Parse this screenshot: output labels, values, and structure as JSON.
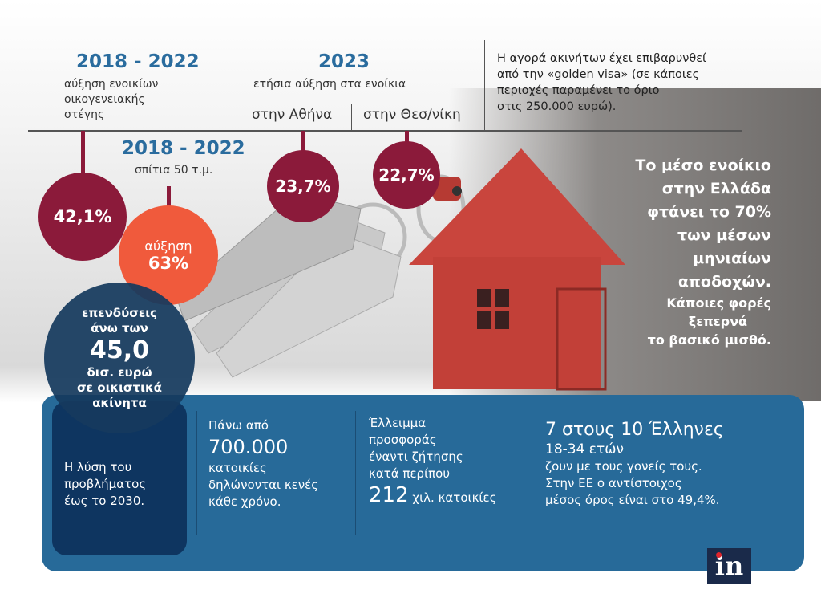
{
  "top": {
    "block1": {
      "years": "2018 - 2022",
      "lines": [
        "αύξηση ενοικίων",
        "οικογενειακής",
        "στέγης"
      ]
    },
    "block2": {
      "year": "2023",
      "subtitle": "ετήσια αύξηση στα ενοίκια",
      "athens": "στην Αθήνα",
      "thessaloniki": "στην Θεσ/νίκη"
    },
    "note": [
      "Η αγορά ακινήτων έχει επιβαρυνθεί",
      "από την «golden visa» (σε κάποιες",
      "περιοχές παραμένει το όριο",
      "στις 250.000 ευρώ)."
    ]
  },
  "circles": {
    "family_rent": "42,1%",
    "houses_years": "2018 - 2022",
    "houses_label": "σπίτια  50 τ.μ.",
    "houses_increase_label": "αύξηση",
    "houses_increase": "63%",
    "athens": "23,7%",
    "thessaloniki": "22,7%",
    "investment": {
      "line1": "επενδύσεις",
      "line2": "άνω των",
      "value": "45,0",
      "line3": "δισ. ευρώ",
      "line4": "σε οικιστικά",
      "line5": "ακίνητα"
    }
  },
  "headline": [
    "Το μέσο ενοίκιο",
    "στην Ελλάδα",
    "φτάνει το 70%",
    "των μέσων",
    "μηνιαίων",
    "αποδοχών."
  ],
  "headline_sub": [
    "Κάποιες φορές",
    "ξεπερνά",
    "το βασικό μισθό."
  ],
  "panel": {
    "solution": [
      "Η λύση του",
      "προβλήματος",
      "έως το 2030."
    ],
    "vacant": {
      "pre": "Πάνω από",
      "value": "700.000",
      "post": [
        "κατοικίες",
        "δηλώνονται κενές",
        "κάθε χρόνο."
      ]
    },
    "deficit": {
      "lines": [
        "Έλλειμμα",
        "προσφοράς",
        "έναντι  ζήτησης",
        "κατά περίπου"
      ],
      "value": "212",
      "unit": "χιλ. κατοικίες"
    },
    "youth": {
      "title": "7 στους 10 Έλληνες",
      "age": "18-34 ετών",
      "lines": [
        "ζουν με τους γονείς τους.",
        "Στην ΕΕ  ο αντίστοιχος",
        "μέσος όρος είναι στο 49,4%."
      ]
    }
  },
  "logo": "in",
  "colors": {
    "blue": "#2a6c9e",
    "maroon": "#8b1a3a",
    "orange": "#f05a3c",
    "navy": "#153a5e",
    "panel": "#276a99"
  }
}
